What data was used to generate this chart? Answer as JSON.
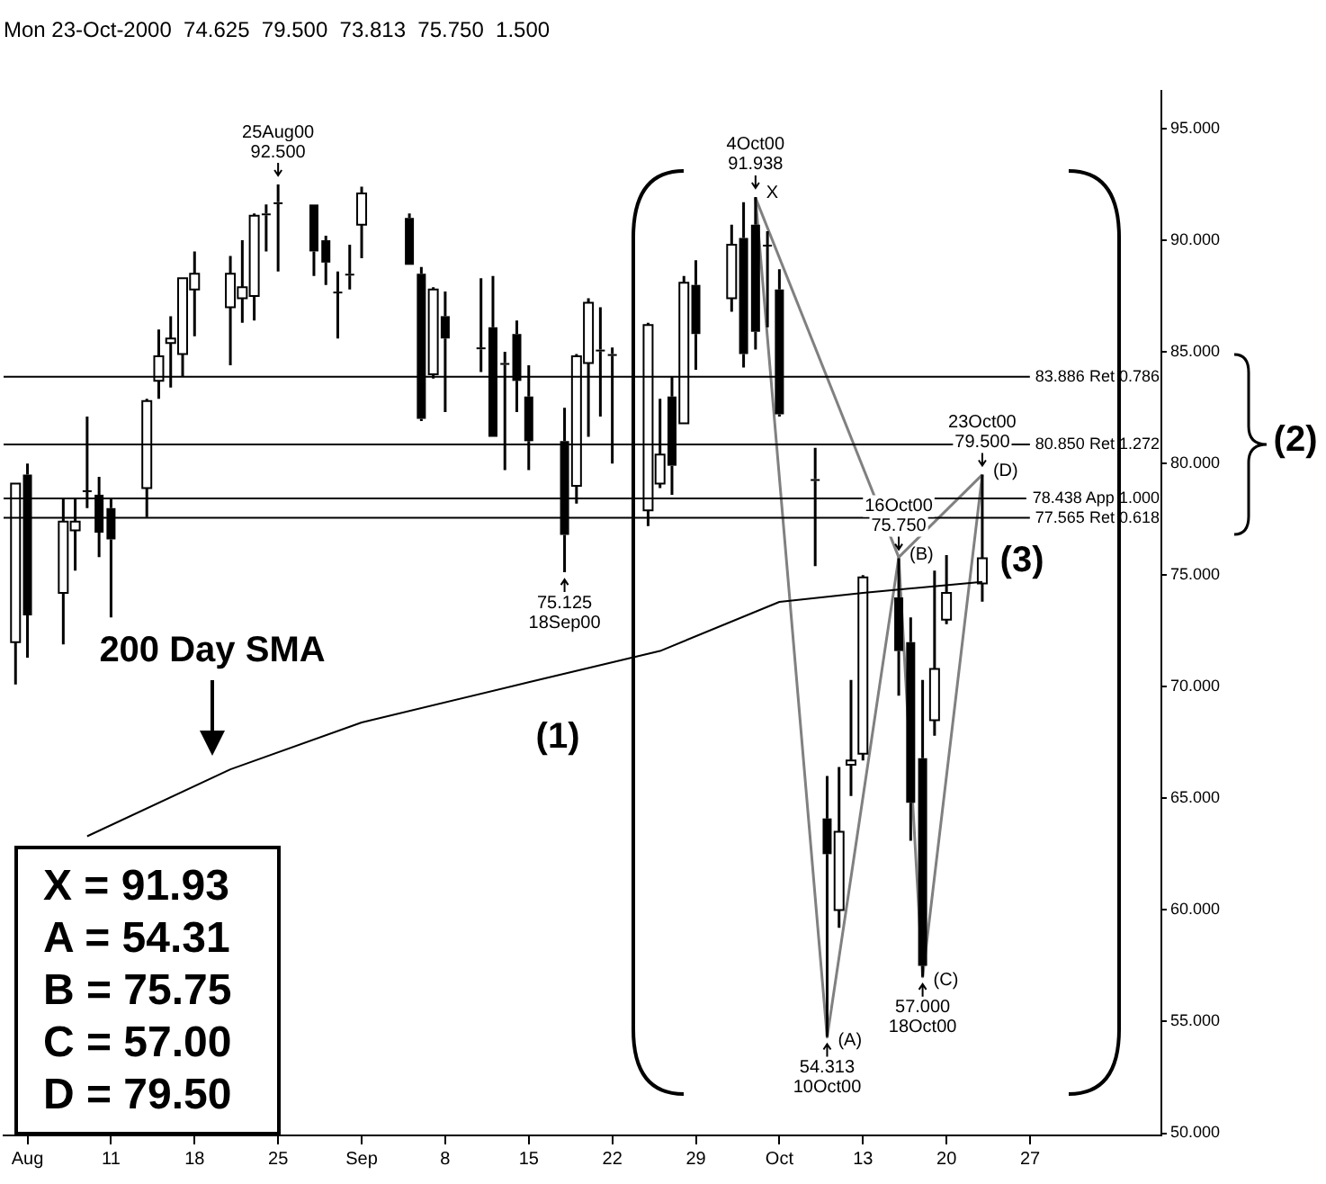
{
  "chart_data": {
    "type": "candlestick",
    "subtitle": "Mon 23-Oct-2000  74.625  79.500  73.813  75.750  1.500",
    "color": "#000000",
    "x": [
      "2000-08-03",
      "2000-08-04",
      "2000-08-07",
      "2000-08-08",
      "2000-08-09",
      "2000-08-10",
      "2000-08-11",
      "2000-08-14",
      "2000-08-15",
      "2000-08-16",
      "2000-08-17",
      "2000-08-18",
      "2000-08-21",
      "2000-08-22",
      "2000-08-23",
      "2000-08-24",
      "2000-08-25",
      "2000-08-28",
      "2000-08-29",
      "2000-08-30",
      "2000-08-31",
      "2000-09-01",
      "2000-09-05",
      "2000-09-06",
      "2000-09-07",
      "2000-09-08",
      "2000-09-11",
      "2000-09-12",
      "2000-09-13",
      "2000-09-14",
      "2000-09-15",
      "2000-09-18",
      "2000-09-19",
      "2000-09-20",
      "2000-09-21",
      "2000-09-22",
      "2000-09-25",
      "2000-09-26",
      "2000-09-27",
      "2000-09-28",
      "2000-09-29",
      "2000-10-02",
      "2000-10-03",
      "2000-10-04",
      "2000-10-05",
      "2000-10-06",
      "2000-10-09",
      "2000-10-10",
      "2000-10-11",
      "2000-10-12",
      "2000-10-13",
      "2000-10-16",
      "2000-10-17",
      "2000-10-18",
      "2000-10-19",
      "2000-10-20",
      "2000-10-23"
    ],
    "ohlc": [
      [
        72.0,
        79.1,
        70.1,
        79.1
      ],
      [
        79.5,
        80.0,
        71.3,
        73.2
      ],
      [
        74.2,
        78.4,
        71.9,
        77.4
      ],
      [
        77.0,
        78.4,
        75.2,
        77.4
      ],
      [
        78.8,
        82.1,
        78.0,
        78.8
      ],
      [
        78.6,
        79.4,
        75.8,
        76.9
      ],
      [
        78.0,
        78.4,
        73.1,
        76.6
      ],
      [
        78.9,
        82.9,
        77.6,
        82.8
      ],
      [
        83.7,
        86.0,
        82.9,
        84.8
      ],
      [
        85.4,
        86.6,
        83.4,
        85.6
      ],
      [
        84.9,
        88.3,
        83.9,
        88.3
      ],
      [
        87.8,
        89.5,
        85.7,
        88.5
      ],
      [
        87.0,
        89.3,
        84.4,
        88.5
      ],
      [
        87.4,
        90.0,
        86.3,
        87.9
      ],
      [
        87.5,
        91.2,
        86.4,
        91.1
      ],
      [
        91.2,
        91.6,
        89.5,
        91.2
      ],
      [
        91.7,
        92.5,
        88.6,
        91.7
      ],
      [
        91.6,
        91.6,
        88.4,
        89.5
      ],
      [
        90.0,
        90.2,
        88.0,
        89.0
      ],
      [
        87.7,
        88.6,
        85.6,
        87.7
      ],
      [
        88.5,
        89.8,
        87.8,
        88.5
      ],
      [
        90.7,
        92.4,
        89.2,
        92.1
      ],
      [
        91.0,
        91.2,
        88.9,
        88.9
      ],
      [
        88.5,
        88.8,
        81.9,
        82.0
      ],
      [
        84.0,
        87.9,
        83.8,
        87.8
      ],
      [
        86.6,
        87.7,
        82.3,
        85.6
      ],
      [
        85.2,
        88.3,
        84.1,
        85.2
      ],
      [
        86.1,
        88.4,
        81.2,
        81.2
      ],
      [
        84.5,
        85.0,
        79.7,
        84.5
      ],
      [
        85.8,
        86.4,
        82.3,
        83.7
      ],
      [
        83.0,
        84.4,
        79.7,
        81.0
      ],
      [
        81.0,
        82.5,
        75.125,
        76.8
      ],
      [
        79.0,
        84.9,
        78.2,
        84.8
      ],
      [
        84.5,
        87.4,
        81.2,
        87.2
      ],
      [
        85.1,
        87.0,
        82.1,
        85.1
      ],
      [
        84.9,
        85.2,
        80.0,
        84.9
      ],
      [
        77.9,
        86.3,
        77.2,
        86.2
      ],
      [
        79.1,
        82.9,
        78.9,
        80.4
      ],
      [
        83.0,
        83.9,
        78.6,
        79.9
      ],
      [
        81.8,
        88.4,
        81.8,
        88.1
      ],
      [
        88.0,
        89.1,
        84.2,
        85.8
      ],
      [
        87.4,
        90.7,
        86.8,
        89.8
      ],
      [
        90.1,
        91.7,
        84.3,
        84.9
      ],
      [
        90.7,
        91.938,
        85.1,
        85.9
      ],
      [
        89.8,
        90.4,
        86.1,
        89.8
      ],
      [
        87.8,
        88.7,
        82.1,
        82.2
      ],
      [
        79.3,
        80.7,
        75.4,
        79.3
      ],
      [
        64.1,
        66.0,
        54.313,
        62.5
      ],
      [
        60.0,
        66.4,
        59.2,
        63.5
      ],
      [
        66.5,
        70.3,
        65.1,
        66.7
      ],
      [
        67.0,
        75.0,
        66.7,
        74.9
      ],
      [
        74.0,
        75.75,
        69.6,
        71.6
      ],
      [
        72.0,
        73.1,
        63.1,
        64.8
      ],
      [
        66.8,
        70.3,
        57.0,
        57.5
      ],
      [
        68.5,
        75.2,
        67.8,
        70.8
      ],
      [
        73.0,
        75.9,
        72.8,
        74.2
      ],
      [
        74.625,
        79.5,
        73.813,
        75.75
      ]
    ],
    "series": [
      {
        "name": "200 Day SMA",
        "type": "line",
        "color": "#000000",
        "x": [
          "2000-08-09",
          "2000-08-21",
          "2000-09-01",
          "2000-09-15",
          "2000-09-26",
          "2000-10-06",
          "2000-10-13",
          "2000-10-23"
        ],
        "values": [
          63.3,
          66.3,
          68.4,
          70.2,
          71.6,
          73.8,
          74.2,
          74.7
        ]
      },
      {
        "type": "line",
        "color": "#808080",
        "x": [
          "2000-10-04",
          "2000-10-10",
          "2000-10-16",
          "2000-10-18",
          "2000-10-23"
        ],
        "values": [
          91.9,
          54.3,
          75.8,
          57.0,
          79.5
        ]
      },
      {
        "type": "line",
        "color": "#808080",
        "x": [
          "2000-10-04",
          "2000-10-16"
        ],
        "values": [
          91.9,
          75.8
        ]
      },
      {
        "type": "line",
        "color": "#808080",
        "x": [
          "2000-10-16",
          "2000-10-23"
        ],
        "values": [
          75.8,
          79.5
        ]
      }
    ],
    "xlim": [
      "2000-08-02",
      "2000-11-07"
    ],
    "xticks": [
      {
        "value": "2000-08-04",
        "label": "Aug"
      },
      {
        "value": "2000-08-11",
        "label": "11"
      },
      {
        "value": "2000-08-18",
        "label": "18"
      },
      {
        "value": "2000-08-25",
        "label": "25"
      },
      {
        "value": "2000-09-01",
        "label": "Sep"
      },
      {
        "value": "2000-09-08",
        "label": "8"
      },
      {
        "value": "2000-09-15",
        "label": "15"
      },
      {
        "value": "2000-09-22",
        "label": "22"
      },
      {
        "value": "2000-09-29",
        "label": "29"
      },
      {
        "value": "2000-10-06",
        "label": "Oct"
      },
      {
        "value": "2000-10-13",
        "label": "13"
      },
      {
        "value": "2000-10-20",
        "label": "20"
      },
      {
        "value": "2000-10-27",
        "label": "27"
      }
    ],
    "ylim": [
      49.9,
      96.7
    ],
    "yticks": [
      {
        "value": 50,
        "label": "50.000"
      },
      {
        "value": 55,
        "label": "55.000"
      },
      {
        "value": 60,
        "label": "60.000"
      },
      {
        "value": 65,
        "label": "65.000"
      },
      {
        "value": 70,
        "label": "70.000"
      },
      {
        "value": 75,
        "label": "75.000"
      },
      {
        "value": 80,
        "label": "80.000"
      },
      {
        "value": 85,
        "label": "85.000"
      },
      {
        "value": 90,
        "label": "90.000"
      },
      {
        "value": 95,
        "label": "95.000"
      }
    ],
    "ref_lines": [
      {
        "axis": "y",
        "value": 83.886,
        "label": "83.886 Ret 0.786"
      },
      {
        "axis": "y",
        "value": 80.85,
        "label": "80.850 Ret 1.272"
      },
      {
        "axis": "y",
        "value": 78.438,
        "label": "78.438 App 1.000"
      },
      {
        "axis": "y",
        "value": 77.565,
        "label": "77.565 Ret 0.618"
      }
    ],
    "annotations": [
      {
        "text": "25Aug00\n92.500",
        "x": "2000-08-25",
        "y": 92.5
      },
      {
        "text": "4Oct00\n91.938",
        "x": "2000-10-04",
        "y": 91.938
      },
      {
        "text": "16Oct00\n75.750",
        "x": "2000-10-16",
        "y": 75.75
      },
      {
        "text": "23Oct00\n79.500",
        "x": "2000-10-23",
        "y": 79.5
      },
      {
        "text": "75.125\n18Sep00",
        "x": "2000-09-18",
        "y": 75.125
      },
      {
        "text": "54.313\n10Oct00",
        "x": "2000-10-10",
        "y": 54.313
      },
      {
        "text": "57.000\n18Oct00",
        "x": "2000-10-18",
        "y": 57.0
      },
      {
        "text": "X",
        "x": "2000-10-04",
        "y": 91.938
      },
      {
        "text": "(A)",
        "x": "2000-10-10",
        "y": 54.313
      },
      {
        "text": "(B)",
        "x": "2000-10-16",
        "y": 75.75
      },
      {
        "text": "(C)",
        "x": "2000-10-18",
        "y": 57.0
      },
      {
        "text": "(D)",
        "x": "2000-10-23",
        "y": 79.5
      },
      "(1)",
      "(2)",
      "(3)",
      "X = 91.93",
      "A = 54.31",
      "B = 75.75",
      "C = 57.00",
      "D = 79.50"
    ]
  }
}
